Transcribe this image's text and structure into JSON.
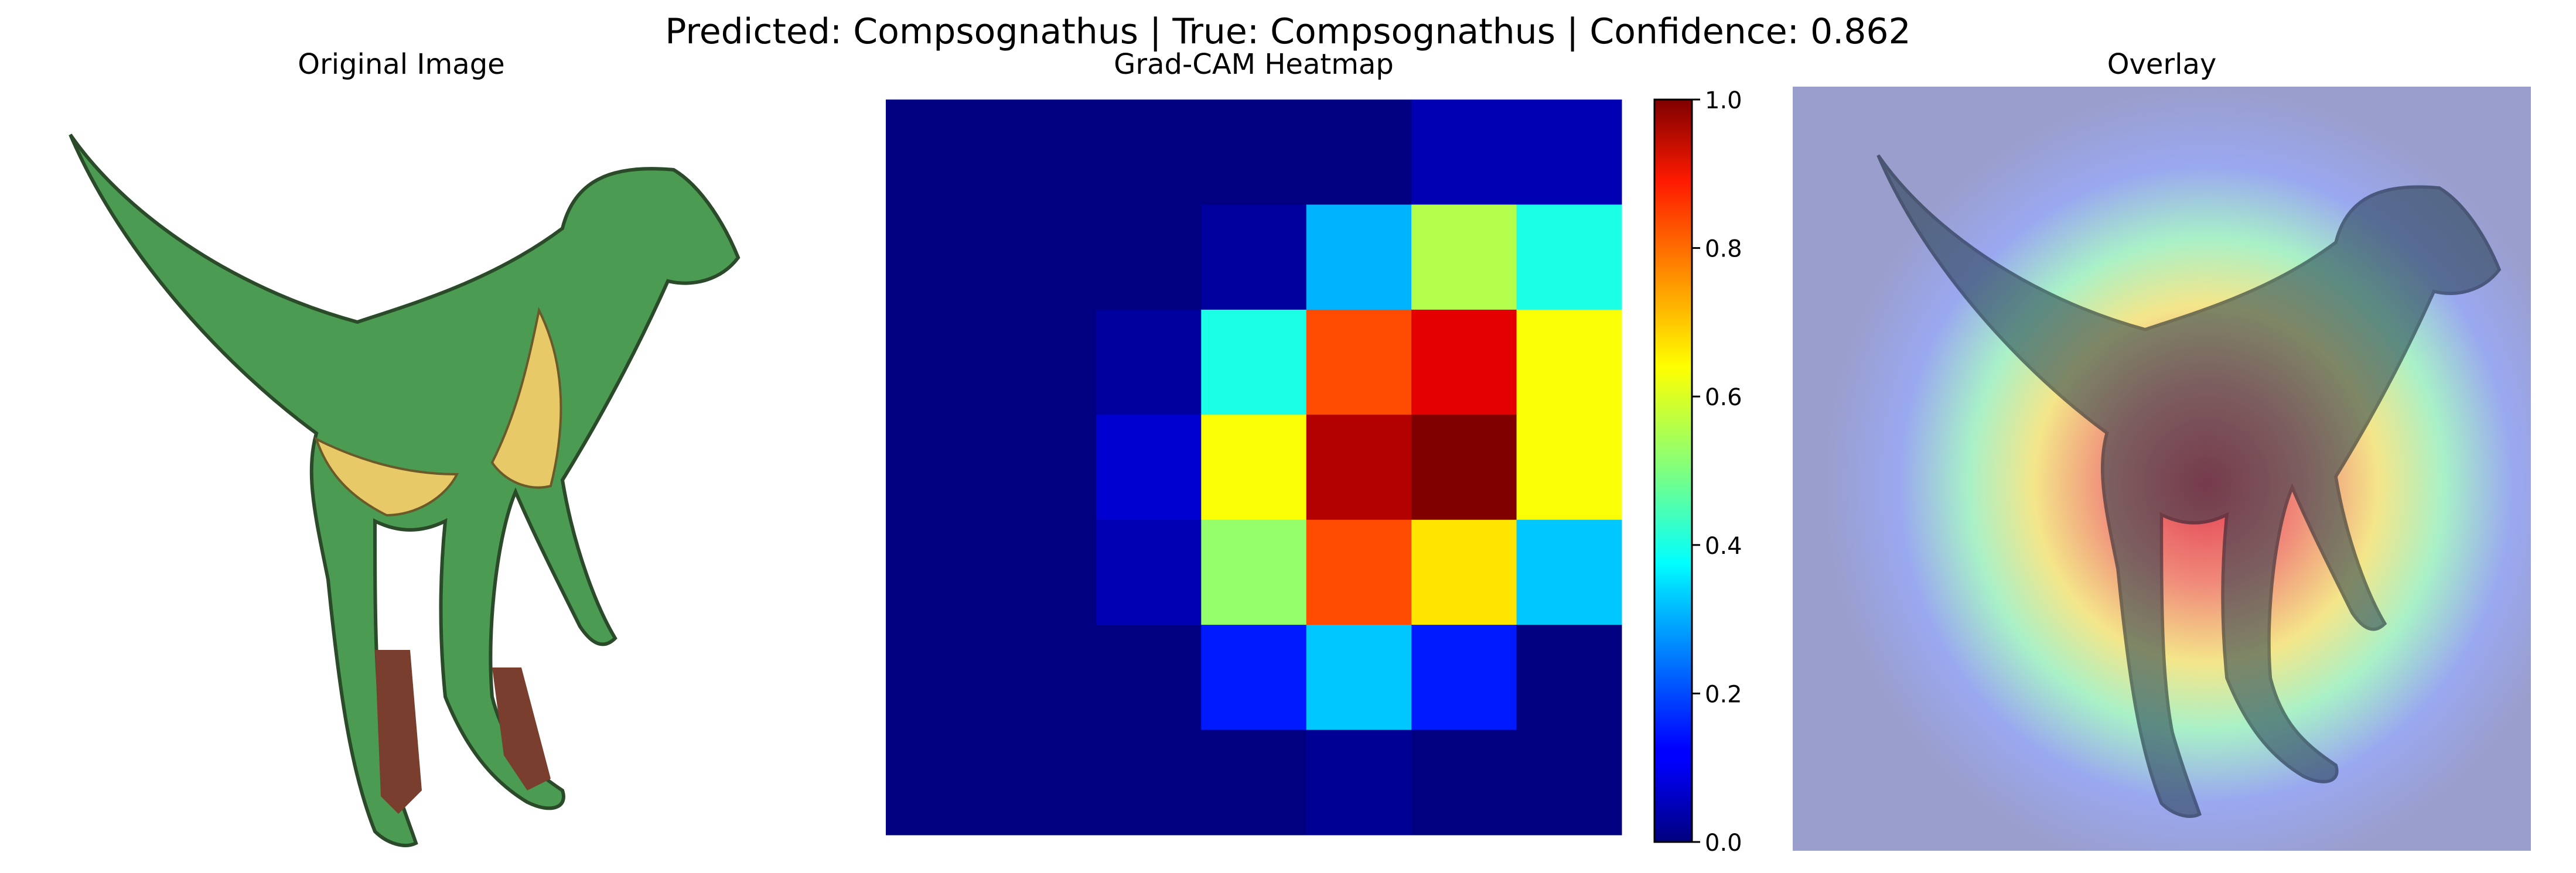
{
  "suptitle": "Predicted: Compsognathus | True: Compsognathus | Confidence: 0.862",
  "panels": {
    "original": {
      "title": "Original Image"
    },
    "heatmap": {
      "title": "Grad-CAM Heatmap"
    },
    "overlay": {
      "title": "Overlay"
    }
  },
  "chart_data": {
    "type": "heatmap",
    "title": "Grad-CAM Heatmap",
    "rows": 7,
    "cols": 7,
    "values": [
      [
        0.0,
        0.0,
        0.0,
        0.0,
        0.0,
        0.05,
        0.05
      ],
      [
        0.0,
        0.0,
        0.0,
        0.03,
        0.3,
        0.55,
        0.4
      ],
      [
        0.0,
        0.0,
        0.03,
        0.4,
        0.8,
        0.9,
        0.62
      ],
      [
        0.0,
        0.0,
        0.08,
        0.62,
        0.95,
        1.0,
        0.62
      ],
      [
        0.0,
        0.0,
        0.05,
        0.52,
        0.8,
        0.65,
        0.32
      ],
      [
        0.0,
        0.0,
        0.0,
        0.15,
        0.32,
        0.15,
        0.0
      ],
      [
        0.0,
        0.0,
        0.0,
        0.0,
        0.02,
        0.0,
        0.0
      ]
    ],
    "colormap": "jet",
    "colorbar": {
      "min": 0.0,
      "max": 1.0,
      "ticks": [
        "0.0",
        "0.2",
        "0.4",
        "0.6",
        "0.8",
        "1.0"
      ]
    }
  }
}
